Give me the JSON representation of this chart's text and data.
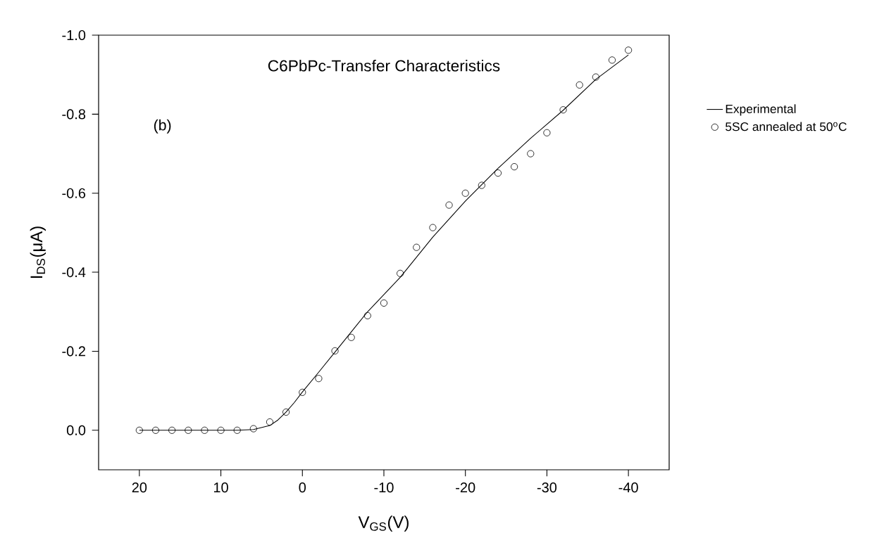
{
  "chart_data": {
    "type": "line",
    "title": "C6PbPc-Transfer Characteristics",
    "xlabel": "V$_{GS}$(V)",
    "ylabel": "I$_{DS}$(μA)",
    "annotations": [
      "(b)"
    ],
    "xlim": [
      25,
      -45
    ],
    "ylim": [
      0.1,
      -1.0
    ],
    "xticks": [
      20,
      10,
      0,
      -10,
      -20,
      -30,
      -40
    ],
    "yticks": [
      {
        "value": 0,
        "label": "0.0"
      },
      -0.2,
      -0.4,
      -0.6,
      -0.8,
      {
        "value": -1,
        "label": "-1.0"
      }
    ],
    "grid": false,
    "legend": "top right",
    "series": [
      {
        "name": "Experimental",
        "color": "#000000",
        "line_style": "solid",
        "x": [
          20,
          14,
          8,
          6,
          4,
          3,
          2,
          1,
          0,
          -2,
          -4,
          -8,
          -12,
          -16,
          -20,
          -24,
          -28,
          -32,
          -36,
          -40
        ],
        "values": [
          0,
          0,
          0,
          -0.002,
          -0.012,
          -0.026,
          -0.046,
          -0.07,
          -0.097,
          -0.147,
          -0.198,
          -0.3,
          -0.387,
          -0.489,
          -0.58,
          -0.663,
          -0.739,
          -0.81,
          -0.888,
          -0.95
        ]
      },
      {
        "name": "5SC annealed at 50$^{o}$C",
        "type": "scatter",
        "color": "#000000",
        "marker": "circle",
        "x": [
          20,
          18,
          16,
          14,
          12,
          10,
          8,
          6,
          4,
          2,
          0,
          -2,
          -4,
          -6,
          -8,
          -10,
          -12,
          -14,
          -16,
          -18,
          -20,
          -22,
          -24,
          -26,
          -28,
          -30,
          -32,
          -34,
          -36,
          -38,
          -40
        ],
        "values": [
          0,
          0,
          0,
          0,
          0,
          0,
          0,
          -0.004,
          -0.021,
          -0.046,
          -0.096,
          -0.131,
          -0.201,
          -0.235,
          -0.29,
          -0.322,
          -0.397,
          -0.463,
          -0.513,
          -0.57,
          -0.6,
          -0.62,
          -0.651,
          -0.667,
          -0.7,
          -0.753,
          -0.811,
          -0.874,
          -0.894,
          -0.937,
          -0.962
        ]
      }
    ]
  }
}
